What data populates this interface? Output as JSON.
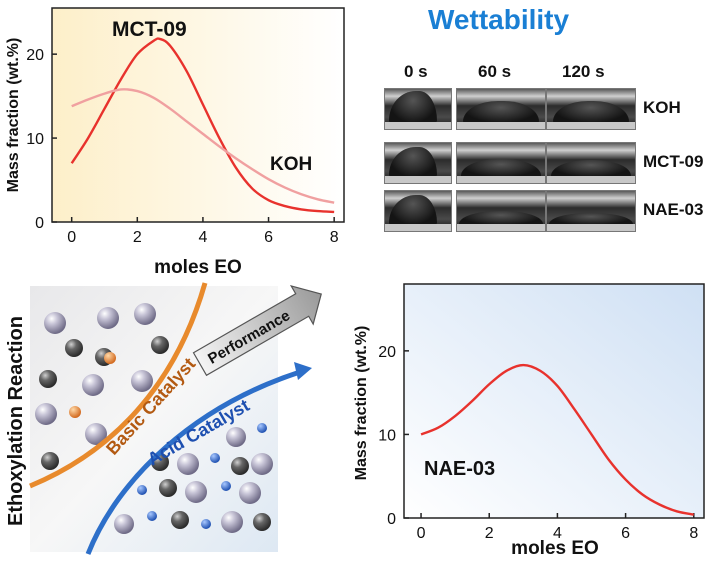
{
  "top_chart": {
    "type": "line",
    "annotation": "MCT-09",
    "label_koh": "KOH",
    "xlabel": "moles EO",
    "ylabel": "Mass fraction (wt.%)",
    "x_ticks": [
      "0",
      "2",
      "4",
      "6",
      "8"
    ],
    "y_ticks": [
      "0",
      "10",
      "20"
    ],
    "xlim": [
      -0.6,
      8.3
    ],
    "ylim": [
      0,
      25.5
    ],
    "series": [
      {
        "color": "#e8322d",
        "x": [
          0,
          0.5,
          1,
          1.5,
          2,
          2.5,
          2.7,
          3,
          3.5,
          4,
          4.5,
          5,
          5.5,
          6,
          6.5,
          7,
          7.5,
          8
        ],
        "y": [
          7,
          10,
          13.5,
          17,
          20,
          21.6,
          21.8,
          21,
          18,
          14,
          10,
          6.5,
          4,
          2.6,
          1.9,
          1.5,
          1.3,
          1.2
        ]
      },
      {
        "color": "#f0a0a0",
        "x": [
          0,
          0.5,
          1,
          1.5,
          2,
          2.5,
          3,
          3.5,
          4,
          4.5,
          5,
          5.5,
          6,
          6.5,
          7,
          7.5,
          8
        ],
        "y": [
          13.8,
          14.6,
          15.3,
          15.8,
          15.6,
          14.8,
          13.5,
          12,
          10.5,
          9,
          7.6,
          6.3,
          5.1,
          4.1,
          3.3,
          2.7,
          2.3
        ]
      }
    ]
  },
  "wettability": {
    "title": "Wettability",
    "times": [
      "0 s",
      "60 s",
      "120 s"
    ],
    "rows": [
      "KOH",
      "MCT-09",
      "NAE-03"
    ]
  },
  "schematic": {
    "y_axis_text": "Ethoxylation  Reaction",
    "basic_catalyst": "Basic Catalyst",
    "acid_catalyst": "Acid Catalyst",
    "performance": "Performance",
    "colors": {
      "basic": "#e88a2c",
      "acid": "#2d6fc9",
      "arrow": "#8a8a8a"
    }
  },
  "bottom_chart": {
    "type": "line",
    "annotation": "NAE-03",
    "xlabel": "moles EO",
    "ylabel": "Mass fraction (wt.%)",
    "x_ticks": [
      "0",
      "2",
      "4",
      "6",
      "8"
    ],
    "y_ticks": [
      "0",
      "10",
      "20"
    ],
    "xlim": [
      -0.5,
      8.3
    ],
    "ylim": [
      0,
      28
    ],
    "series": [
      {
        "color": "#e8322d",
        "x": [
          0,
          0.5,
          1,
          1.5,
          2,
          2.5,
          3,
          3.5,
          4,
          4.5,
          5,
          5.5,
          6,
          6.5,
          7,
          7.5,
          8
        ],
        "y": [
          10,
          10.8,
          12.2,
          14,
          16,
          17.6,
          18.3,
          17.6,
          15.8,
          13,
          10,
          7,
          4.6,
          2.8,
          1.6,
          0.8,
          0.4
        ]
      }
    ]
  }
}
